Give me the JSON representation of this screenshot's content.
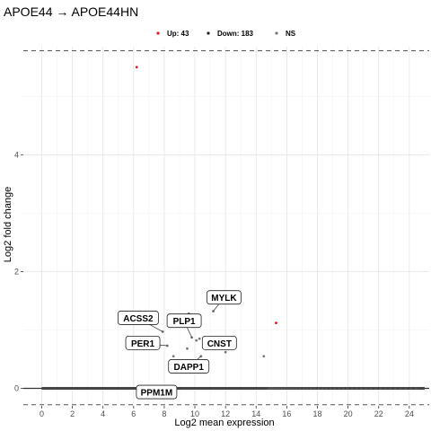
{
  "chart_data": {
    "type": "scatter",
    "title": "APOE44 → APOE44HN",
    "xlabel": "Log2 mean expression",
    "ylabel": "Log2 fold change",
    "xlim": [
      -1.2,
      25.3
    ],
    "ylim": [
      -0.3,
      5.85
    ],
    "x_ticks": [
      0,
      2,
      4,
      6,
      8,
      10,
      12,
      14,
      16,
      18,
      20,
      22,
      24
    ],
    "y_ticks": [
      0,
      2,
      4
    ],
    "grid": true,
    "hlines": {
      "solid": [
        0
      ],
      "dashed": [
        5.78,
        -0.28
      ]
    },
    "legend": {
      "placement": "top",
      "entries": [
        {
          "label": "Up: 43",
          "color": "#e41a1c"
        },
        {
          "label": "Down: 183",
          "color": "#222222"
        },
        {
          "label": "NS",
          "color": "#777777"
        }
      ]
    },
    "series": [
      {
        "name": "Up: 43",
        "color": "#e41a1c",
        "points": [
          {
            "x": 6.2,
            "y": 5.5
          },
          {
            "x": 15.3,
            "y": 1.12
          }
        ]
      },
      {
        "name": "NS",
        "color": "#777777",
        "points": [
          {
            "x": 8.2,
            "y": 0.73
          },
          {
            "x": 8.6,
            "y": 0.55
          },
          {
            "x": 9.5,
            "y": 0.68
          },
          {
            "x": 9.6,
            "y": 1.28
          },
          {
            "x": 9.8,
            "y": 0.87
          },
          {
            "x": 10.1,
            "y": 0.82
          },
          {
            "x": 10.3,
            "y": 0.85
          },
          {
            "x": 10.4,
            "y": 0.55
          },
          {
            "x": 10.9,
            "y": 0.88
          },
          {
            "x": 11.2,
            "y": 1.32
          },
          {
            "x": 14.5,
            "y": 0.55
          },
          {
            "x": 7.9,
            "y": 0.97
          },
          {
            "x": 12.0,
            "y": 0.62
          },
          {
            "x": 9.0,
            "y": 0.48
          }
        ]
      }
    ],
    "baseline_band": {
      "x_min": 0,
      "x_max": 25,
      "y": 0
    },
    "annotations": [
      {
        "label": "MYLK",
        "x": 11.9,
        "y": 1.55,
        "point_x": 11.2,
        "point_y": 1.32
      },
      {
        "label": "ACSS2",
        "x": 6.3,
        "y": 1.2,
        "point_x": 7.9,
        "point_y": 0.97
      },
      {
        "label": "PLP1",
        "x": 9.3,
        "y": 1.15,
        "point_x": 9.8,
        "point_y": 0.87
      },
      {
        "label": "PER1",
        "x": 6.6,
        "y": 0.77,
        "point_x": 8.2,
        "point_y": 0.73
      },
      {
        "label": "CNST",
        "x": 11.6,
        "y": 0.77,
        "point_x": 10.9,
        "point_y": 0.88
      },
      {
        "label": "DAPP1",
        "x": 9.6,
        "y": 0.37,
        "point_x": 10.4,
        "point_y": 0.55
      },
      {
        "label": "PPM1M",
        "x": 7.5,
        "y": -0.07,
        "point_x": 7.5,
        "point_y": 0.0
      }
    ]
  }
}
